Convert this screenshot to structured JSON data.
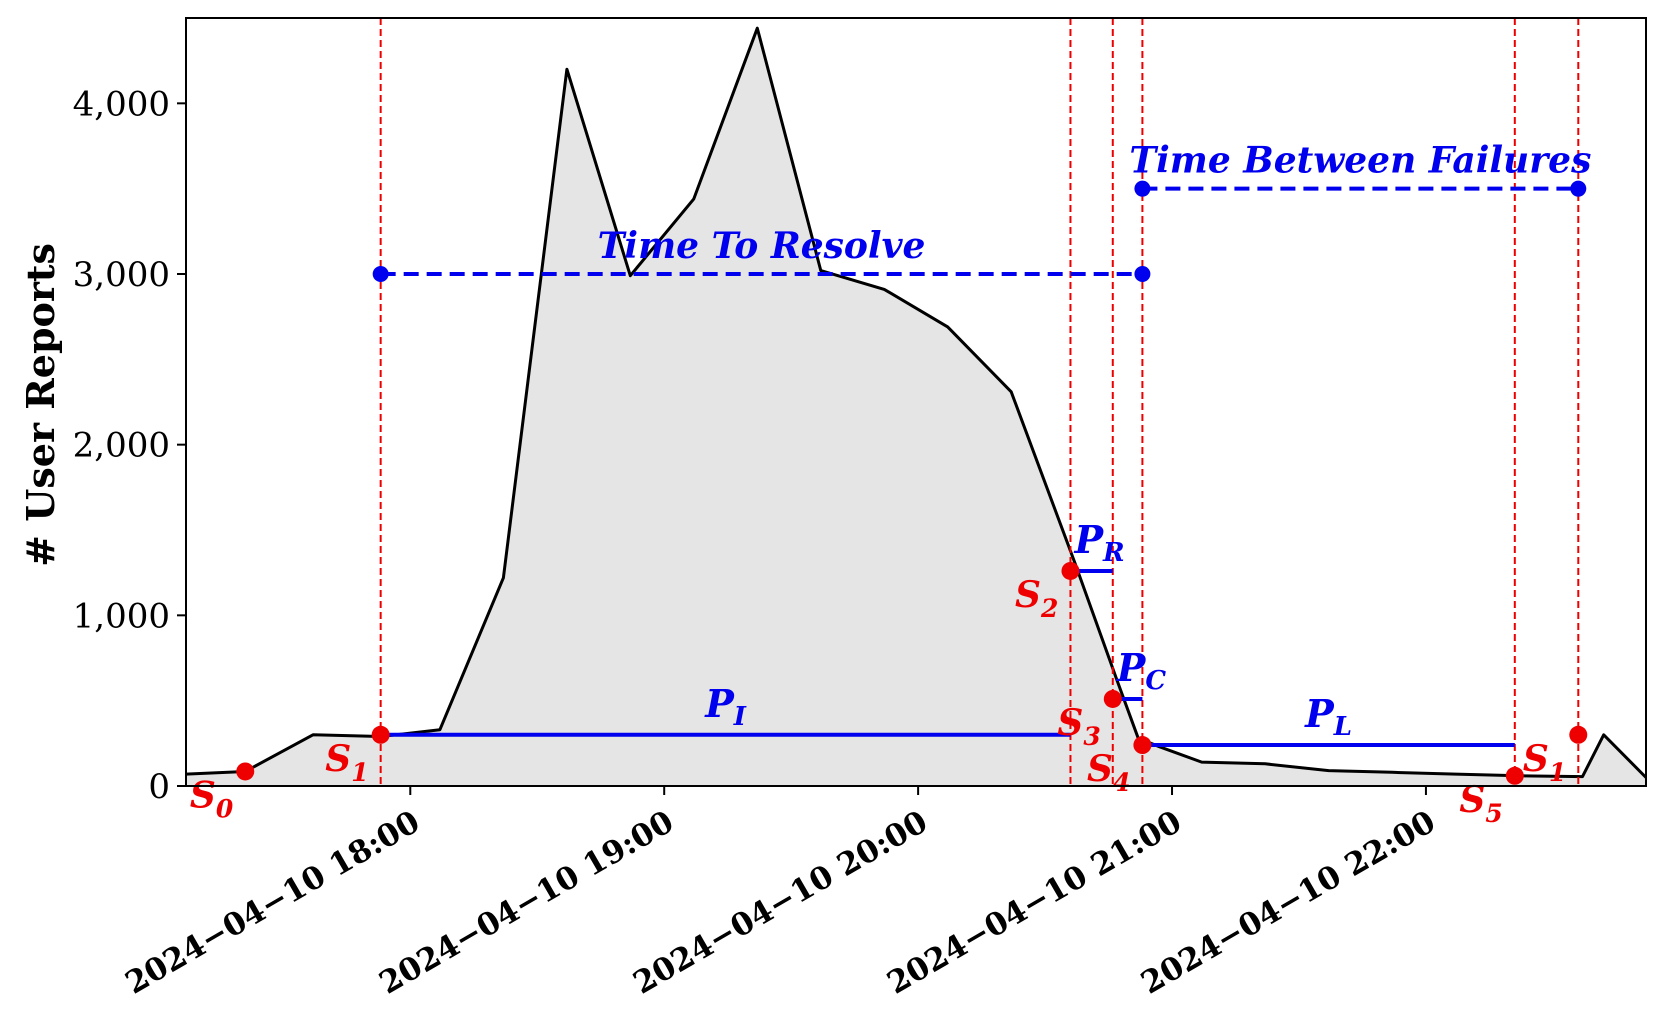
{
  "chart_data": {
    "type": "area",
    "ylabel": "# User Reports",
    "xlabel": "",
    "title": "",
    "ylim": [
      0,
      4500
    ],
    "xlim": [
      "2024-04-10 17:07",
      "2024-04-10 22:52"
    ],
    "grid": false,
    "y_ticks": [
      {
        "value": 0,
        "label": "0"
      },
      {
        "value": 1000,
        "label": "1,000"
      },
      {
        "value": 2000,
        "label": "2,000"
      },
      {
        "value": 3000,
        "label": "3,000"
      },
      {
        "value": 4000,
        "label": "4,000"
      }
    ],
    "x_ticks": [
      {
        "value": "2024-04-10 18:00",
        "label": "2024−04−10 18:00"
      },
      {
        "value": "2024-04-10 19:00",
        "label": "2024−04−10 19:00"
      },
      {
        "value": "2024-04-10 20:00",
        "label": "2024−04−10 20:00"
      },
      {
        "value": "2024-04-10 21:00",
        "label": "2024−04−10 21:00"
      },
      {
        "value": "2024-04-10 22:00",
        "label": "2024−04−10 22:00"
      }
    ],
    "series": [
      {
        "x": [
          "2024-04-10 17:07",
          "2024-04-10 17:21",
          "2024-04-10 17:37",
          "2024-04-10 17:53",
          "2024-04-10 18:07",
          "2024-04-10 18:22",
          "2024-04-10 18:37",
          "2024-04-10 18:52",
          "2024-04-10 19:07",
          "2024-04-10 19:22",
          "2024-04-10 19:37",
          "2024-04-10 19:52",
          "2024-04-10 20:07",
          "2024-04-10 20:22",
          "2024-04-10 20:37",
          "2024-04-10 20:47",
          "2024-04-10 20:52",
          "2024-04-10 20:57",
          "2024-04-10 21:07",
          "2024-04-10 21:22",
          "2024-04-10 21:37",
          "2024-04-10 21:52",
          "2024-04-10 22:07",
          "2024-04-10 22:22",
          "2024-04-10 22:37",
          "2024-04-10 22:42",
          "2024-04-10 22:52"
        ],
        "y": [
          70,
          85,
          300,
          290,
          330,
          1220,
          4200,
          2990,
          3440,
          4440,
          3020,
          2910,
          2690,
          2310,
          1310,
          620,
          280,
          230,
          140,
          130,
          90,
          80,
          70,
          60,
          55,
          300,
          50
        ]
      }
    ],
    "vlines": [
      "2024-04-10 17:53",
      "2024-04-10 20:36",
      "2024-04-10 20:46",
      "2024-04-10 20:53",
      "2024-04-10 22:21",
      "2024-04-10 22:36"
    ],
    "state_points": [
      {
        "label": "S",
        "sub": "0",
        "x": "2024-04-10 17:21",
        "y": 85
      },
      {
        "label": "S",
        "sub": "1",
        "x": "2024-04-10 17:53",
        "y": 300
      },
      {
        "label": "S",
        "sub": "2",
        "x": "2024-04-10 20:36",
        "y": 1260
      },
      {
        "label": "S",
        "sub": "3",
        "x": "2024-04-10 20:46",
        "y": 510
      },
      {
        "label": "S",
        "sub": "4",
        "x": "2024-04-10 20:53",
        "y": 240
      },
      {
        "label": "S",
        "sub": "5",
        "x": "2024-04-10 22:21",
        "y": 60
      },
      {
        "label": "S",
        "sub": "1",
        "x": "2024-04-10 22:36",
        "y": 300
      }
    ],
    "phases": [
      {
        "label": "P",
        "sub": "I",
        "x_start": "2024-04-10 17:53",
        "x_end": "2024-04-10 20:36",
        "y": 300
      },
      {
        "label": "P",
        "sub": "R",
        "x_start": "2024-04-10 20:36",
        "x_end": "2024-04-10 20:46",
        "y": 1260
      },
      {
        "label": "P",
        "sub": "C",
        "x_start": "2024-04-10 20:46",
        "x_end": "2024-04-10 20:53",
        "y": 510
      },
      {
        "label": "P",
        "sub": "L",
        "x_start": "2024-04-10 20:53",
        "x_end": "2024-04-10 22:21",
        "y": 240
      }
    ],
    "intervals": [
      {
        "label": "Time To Resolve",
        "x_start": "2024-04-10 17:53",
        "x_end": "2024-04-10 20:53",
        "y": 3000
      },
      {
        "label": "Time Between Failures",
        "x_start": "2024-04-10 20:53",
        "x_end": "2024-04-10 22:36",
        "y": 3500
      }
    ],
    "colors": {
      "line": "#000000",
      "fill": "#e5e5e5",
      "states": "#ee0000",
      "phases": "#0000ee"
    }
  }
}
